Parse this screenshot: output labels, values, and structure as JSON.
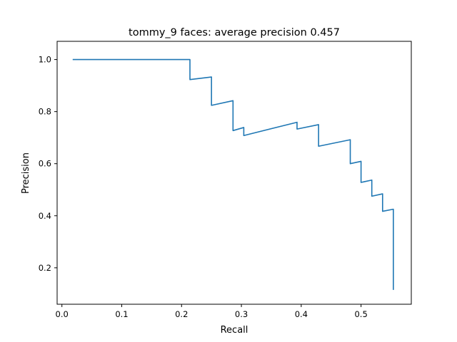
{
  "chart_data": {
    "type": "line",
    "title": "tommy_9 faces: average precision 0.457",
    "xlabel": "Recall",
    "ylabel": "Precision",
    "xlim": [
      -0.008,
      0.584
    ],
    "ylim": [
      0.06,
      1.07
    ],
    "x_ticks": [
      {
        "value": 0.0,
        "label": "0.0"
      },
      {
        "value": 0.1,
        "label": "0.1"
      },
      {
        "value": 0.2,
        "label": "0.2"
      },
      {
        "value": 0.3,
        "label": "0.3"
      },
      {
        "value": 0.4,
        "label": "0.4"
      },
      {
        "value": 0.5,
        "label": "0.5"
      }
    ],
    "y_ticks": [
      {
        "value": 0.2,
        "label": "0.2"
      },
      {
        "value": 0.4,
        "label": "0.4"
      },
      {
        "value": 0.6,
        "label": "0.6"
      },
      {
        "value": 0.8,
        "label": "0.8"
      },
      {
        "value": 1.0,
        "label": "1.0"
      }
    ],
    "grid": false,
    "legend": "none",
    "series": [
      {
        "color": "#1f77b4",
        "x": [
          0.018,
          0.214,
          0.214,
          0.25,
          0.25,
          0.286,
          0.286,
          0.304,
          0.304,
          0.393,
          0.393,
          0.429,
          0.429,
          0.482,
          0.482,
          0.5,
          0.5,
          0.518,
          0.518,
          0.536,
          0.536,
          0.554,
          0.554
        ],
        "y": [
          1.0,
          1.0,
          0.923,
          0.933,
          0.824,
          0.842,
          0.727,
          0.739,
          0.708,
          0.759,
          0.733,
          0.75,
          0.667,
          0.692,
          0.6,
          0.609,
          0.528,
          0.537,
          0.475,
          0.484,
          0.417,
          0.425,
          0.115
        ]
      }
    ]
  }
}
